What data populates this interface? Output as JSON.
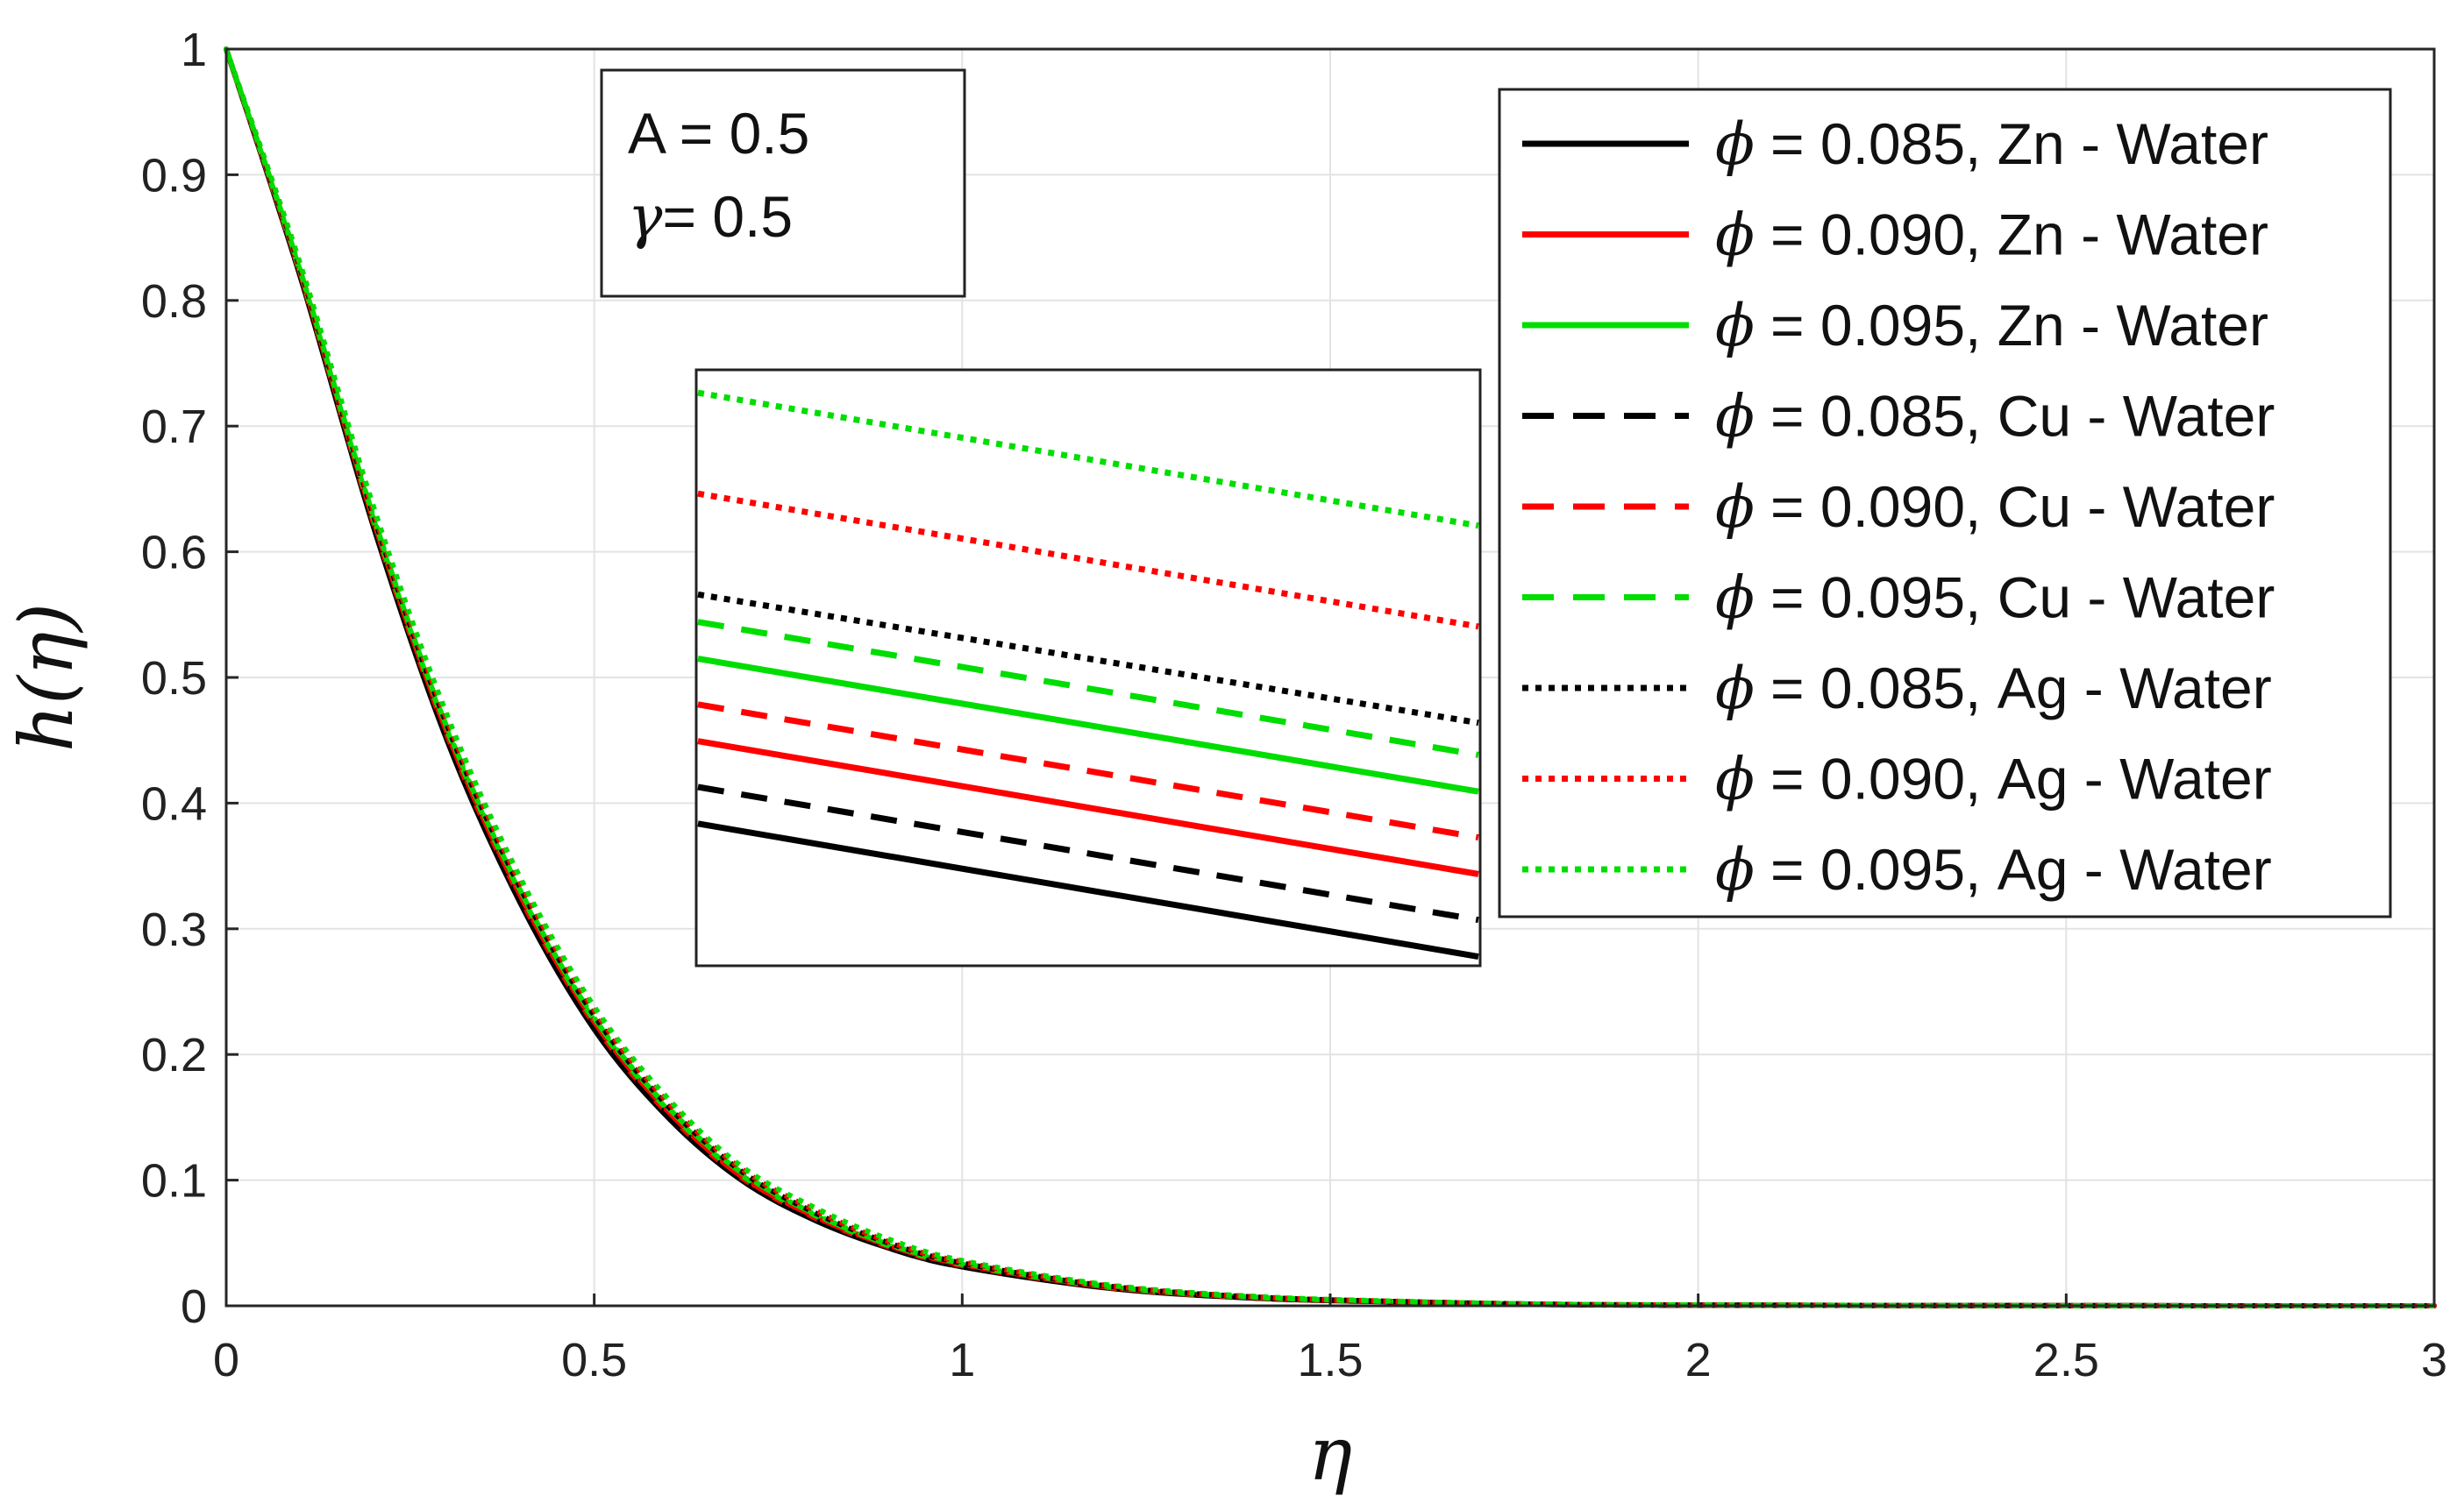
{
  "chart_data": {
    "type": "line",
    "xlabel": "η",
    "ylabel": "h(η)",
    "xlim": [
      0,
      3
    ],
    "ylim": [
      0,
      1
    ],
    "xticks": [
      "0",
      "0.5",
      "1",
      "1.5",
      "2",
      "2.5",
      "3"
    ],
    "yticks": [
      "0",
      "0.1",
      "0.2",
      "0.3",
      "0.4",
      "0.5",
      "0.6",
      "0.7",
      "0.8",
      "0.9",
      "1"
    ],
    "grid": true,
    "legend_position": "top-right",
    "annotation": {
      "line1": "A = 0.5",
      "line2_symbol": "γ",
      "line2_rest": "= 0.5"
    },
    "x": [
      0,
      0.1,
      0.2,
      0.3,
      0.4,
      0.5,
      0.6,
      0.7,
      0.8,
      0.9,
      1.0,
      1.2,
      1.4,
      1.6,
      1.8,
      2.0,
      2.5,
      3.0
    ],
    "series": [
      {
        "name": "ϕ = 0.085, Zn - Water",
        "symbol": "ϕ",
        "label": "= 0.085, Zn - Water",
        "color": "#000000",
        "style": "solid",
        "values": [
          1,
          0.82,
          0.62,
          0.45,
          0.32,
          0.22,
          0.15,
          0.1,
          0.068,
          0.046,
          0.031,
          0.014,
          0.006,
          0.003,
          0.001,
          0.0005,
          0.0001,
          0
        ]
      },
      {
        "name": "ϕ = 0.090, Zn - Water",
        "symbol": "ϕ",
        "label": "= 0.090, Zn - Water",
        "color": "#ff0000",
        "style": "solid",
        "values": [
          1,
          0.822,
          0.623,
          0.454,
          0.324,
          0.224,
          0.153,
          0.102,
          0.07,
          0.047,
          0.032,
          0.0145,
          0.0063,
          0.0031,
          0.0011,
          0.0005,
          0.0001,
          0
        ]
      },
      {
        "name": "ϕ = 0.095, Zn - Water",
        "symbol": "ϕ",
        "label": "= 0.095, Zn - Water",
        "color": "#00dd00",
        "style": "solid",
        "values": [
          1,
          0.824,
          0.626,
          0.458,
          0.328,
          0.227,
          0.156,
          0.104,
          0.072,
          0.048,
          0.033,
          0.015,
          0.0066,
          0.0032,
          0.0012,
          0.0006,
          0.0001,
          0
        ]
      },
      {
        "name": "ϕ = 0.085, Cu - Water",
        "symbol": "ϕ",
        "label": "= 0.085, Cu - Water",
        "color": "#000000",
        "style": "dashed",
        "values": [
          1,
          0.821,
          0.621,
          0.452,
          0.322,
          0.222,
          0.152,
          0.101,
          0.069,
          0.046,
          0.031,
          0.0142,
          0.0061,
          0.003,
          0.001,
          0.0005,
          0.0001,
          0
        ]
      },
      {
        "name": "ϕ = 0.090, Cu - Water",
        "symbol": "ϕ",
        "label": "= 0.090, Cu - Water",
        "color": "#ff0000",
        "style": "dashed",
        "values": [
          1,
          0.823,
          0.625,
          0.456,
          0.326,
          0.226,
          0.155,
          0.103,
          0.071,
          0.048,
          0.033,
          0.0148,
          0.0065,
          0.0031,
          0.0011,
          0.0006,
          0.0001,
          0
        ]
      },
      {
        "name": "ϕ = 0.095, Cu - Water",
        "symbol": "ϕ",
        "label": "= 0.095, Cu - Water",
        "color": "#00dd00",
        "style": "dashed",
        "values": [
          1,
          0.825,
          0.628,
          0.46,
          0.33,
          0.229,
          0.158,
          0.106,
          0.073,
          0.049,
          0.034,
          0.0153,
          0.0068,
          0.0033,
          0.0012,
          0.0006,
          0.0001,
          0
        ]
      },
      {
        "name": "ϕ = 0.085, Ag - Water",
        "symbol": "ϕ",
        "label": "= 0.085, Ag - Water",
        "color": "#000000",
        "style": "dotted",
        "values": [
          1,
          0.826,
          0.629,
          0.462,
          0.332,
          0.231,
          0.159,
          0.107,
          0.074,
          0.05,
          0.034,
          0.0155,
          0.0069,
          0.0033,
          0.0012,
          0.0006,
          0.0001,
          0
        ]
      },
      {
        "name": "ϕ = 0.090, Ag - Water",
        "symbol": "ϕ",
        "label": "= 0.090, Ag - Water",
        "color": "#ff0000",
        "style": "dotted",
        "values": [
          1,
          0.828,
          0.632,
          0.466,
          0.336,
          0.235,
          0.162,
          0.109,
          0.076,
          0.051,
          0.035,
          0.016,
          0.0071,
          0.0034,
          0.0013,
          0.0006,
          0.0001,
          0
        ]
      },
      {
        "name": "ϕ = 0.095, Ag - Water",
        "symbol": "ϕ",
        "label": "= 0.095, Ag - Water",
        "color": "#00dd00",
        "style": "dotted",
        "values": [
          1,
          0.83,
          0.636,
          0.47,
          0.34,
          0.238,
          0.165,
          0.111,
          0.078,
          0.053,
          0.036,
          0.0165,
          0.0074,
          0.0035,
          0.0013,
          0.0007,
          0.0001,
          0
        ]
      }
    ],
    "inset": {
      "note": "magnified view of the nine curves, no axis labels",
      "series_order": [
        "ϕ = 0.085, Zn - Water",
        "ϕ = 0.090, Zn - Water",
        "ϕ = 0.095, Zn - Water",
        "ϕ = 0.085, Cu - Water",
        "ϕ = 0.090, Cu - Water",
        "ϕ = 0.095, Cu - Water",
        "ϕ = 0.085, Ag - Water",
        "ϕ = 0.090, Ag - Water",
        "ϕ = 0.095, Ag - Water"
      ],
      "start_levels": [
        0.31,
        0.49,
        0.67,
        0.39,
        0.57,
        0.75,
        0.81,
        1.03,
        1.25
      ],
      "end_levels": [
        0.02,
        0.2,
        0.38,
        0.1,
        0.28,
        0.46,
        0.53,
        0.74,
        0.96
      ],
      "y_range": [
        0,
        1.3
      ]
    }
  }
}
